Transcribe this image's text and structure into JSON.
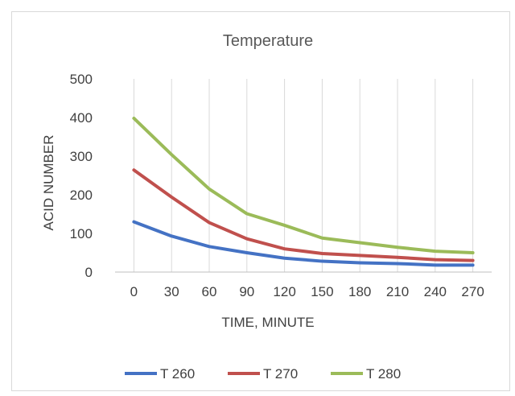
{
  "chart_data": {
    "type": "line",
    "title": "Temperature",
    "xlabel": "TIME, MINUTE",
    "ylabel": "ACID NUMBER",
    "x": [
      0,
      30,
      60,
      90,
      120,
      150,
      180,
      210,
      240,
      270
    ],
    "x_tick_labels": [
      "0",
      "30",
      "60",
      "90",
      "120",
      "150",
      "180",
      "210",
      "240",
      "270"
    ],
    "y_ticks": [
      0,
      100,
      200,
      300,
      400,
      500
    ],
    "y_tick_labels": [
      "0",
      "100",
      "200",
      "300",
      "400",
      "500"
    ],
    "ylim": [
      0,
      500
    ],
    "grid": "vertical",
    "legend_position": "bottom",
    "series": [
      {
        "name": "T 260",
        "color": "#4472c4",
        "values": [
          130,
          93,
          66,
          50,
          36,
          28,
          24,
          22,
          18,
          18
        ]
      },
      {
        "name": "T 270",
        "color": "#c0504d",
        "values": [
          264,
          194,
          128,
          86,
          60,
          48,
          43,
          38,
          32,
          30
        ]
      },
      {
        "name": "T 280",
        "color": "#9bbb59",
        "values": [
          398,
          304,
          215,
          151,
          121,
          88,
          76,
          64,
          54,
          50
        ]
      }
    ]
  }
}
